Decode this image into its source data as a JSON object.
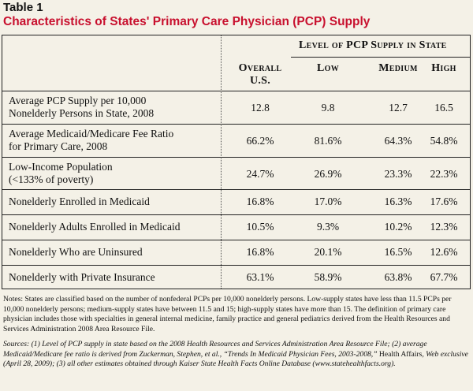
{
  "header": {
    "label": "Table 1",
    "title": "Characteristics of States' Primary Care Physician (PCP) Supply"
  },
  "table": {
    "group_header": "Level of PCP Supply in State",
    "columns": [
      "Overall U.S.",
      "Low",
      "Medium",
      "High"
    ],
    "overall_line1": "Overall",
    "overall_line2": "U.S.",
    "rows": [
      {
        "label1": "Average PCP Supply per 10,000",
        "label2": "Nonelderly Persons in State, 2008",
        "overall": "12.8",
        "low": "9.8",
        "medium": "12.7",
        "high": "16.5"
      },
      {
        "label1": "Average Medicaid/Medicare Fee Ratio",
        "label2": "for Primary Care, 2008",
        "overall": "66.2%",
        "low": "81.6%",
        "medium": "64.3%",
        "high": "54.8%"
      },
      {
        "label1": "Low-Income Population",
        "label2": "(<133% of poverty)",
        "overall": "24.7%",
        "low": "26.9%",
        "medium": "23.3%",
        "high": "22.3%"
      },
      {
        "label1": "Nonelderly Enrolled in Medicaid",
        "overall": "16.8%",
        "low": "17.0%",
        "medium": "16.3%",
        "high": "17.6%"
      },
      {
        "label1": "Nonelderly Adults Enrolled in Medicaid",
        "overall": "10.5%",
        "low": "9.3%",
        "medium": "10.2%",
        "high": "12.3%"
      },
      {
        "label1": "Nonelderly Who are Uninsured",
        "overall": "16.8%",
        "low": "20.1%",
        "medium": "16.5%",
        "high": "12.6%"
      },
      {
        "label1": "Nonelderly with Private Insurance",
        "overall": "63.1%",
        "low": "58.9%",
        "medium": "63.8%",
        "high": "67.7%"
      }
    ]
  },
  "notes": {
    "note": "Notes: States are classified based on the number of nonfederal PCPs per 10,000 nonelderly persons. Low-supply states have less than 11.5 PCPs per 10,000 nonelderly persons; medium-supply states have between 11.5 and 15; high-supply states have more than 15. The definition of primary care physician includes those with specialties in general internal medicine, family practice and general pediatrics derived from the Health Resources and Services Administration 2008 Area Resource File.",
    "sources_part1": "Sources: (1) Level of PCP supply in state based on the 2008 Health Resources and Services Administration Area Resource File; (2) average Medicaid/Medicare fee ratio is derived from Zuckerman, Stephen, et al., “Trends In Medicaid Physician Fees, 2003-2008,”",
    "sources_journal": " Health Affairs,",
    "sources_part2": " Web exclusive (April 28, 2009); (3) all other estimates obtained through Kaiser State Health Facts Online Database (www.statehealthfacts.org)."
  }
}
